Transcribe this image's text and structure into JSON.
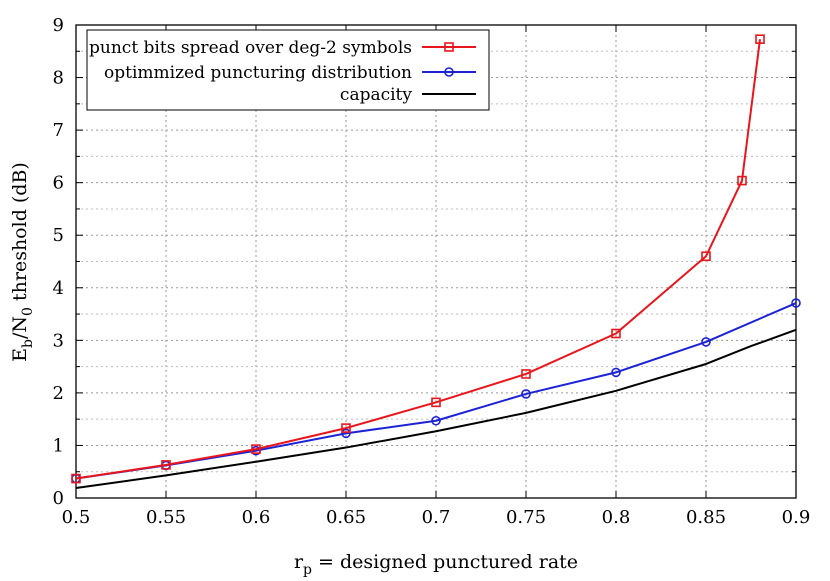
{
  "chart_data": {
    "type": "line",
    "xlabel": {
      "var": "r",
      "sub": "p",
      "rest": " = designed punctured rate"
    },
    "ylabel": {
      "p1": "E",
      "s1": "b",
      "p2": "/N",
      "s2": "0",
      "p3": " threshold (dB)"
    },
    "xlim": [
      0.5,
      0.9
    ],
    "ylim": [
      0,
      9
    ],
    "xticks": [
      "0.5",
      "0.55",
      "0.6",
      "0.65",
      "0.7",
      "0.75",
      "0.8",
      "0.85",
      "0.9"
    ],
    "yticks": [
      "0",
      "1",
      "2",
      "3",
      "4",
      "5",
      "6",
      "7",
      "8",
      "9"
    ],
    "grid": true,
    "legend_position": "top-left",
    "series": [
      {
        "name": "punct bits spread over deg-2 symbols",
        "color": "#e8161c",
        "marker": "square",
        "x": [
          0.5,
          0.55,
          0.6,
          0.65,
          0.7,
          0.75,
          0.8,
          0.85,
          0.87,
          0.88
        ],
        "y": [
          0.37,
          0.63,
          0.93,
          1.33,
          1.82,
          2.36,
          3.13,
          4.6,
          6.04,
          8.73
        ]
      },
      {
        "name": "optimmized puncturing distribution",
        "color": "#1c22d6",
        "marker": "circle",
        "x": [
          0.5,
          0.55,
          0.6,
          0.65,
          0.7,
          0.75,
          0.8,
          0.85,
          0.9
        ],
        "y": [
          0.37,
          0.62,
          0.9,
          1.23,
          1.47,
          1.98,
          2.39,
          2.97,
          3.71
        ]
      },
      {
        "name": "capacity",
        "color": "#000000",
        "marker": "none",
        "x": [
          0.5,
          0.55,
          0.6,
          0.65,
          0.7,
          0.75,
          0.8,
          0.85,
          0.875,
          0.9
        ],
        "y": [
          0.19,
          0.43,
          0.69,
          0.96,
          1.27,
          1.62,
          2.04,
          2.55,
          2.89,
          3.2
        ]
      }
    ]
  }
}
